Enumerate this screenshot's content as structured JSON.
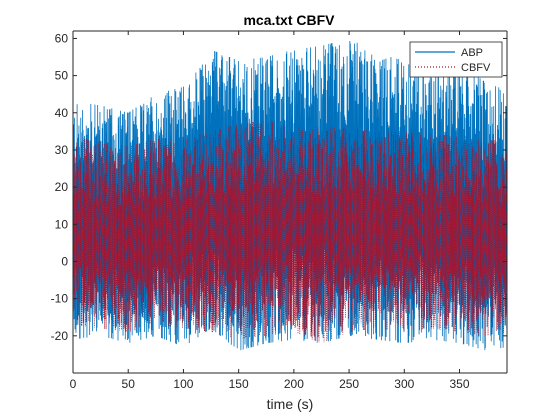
{
  "chart_data": {
    "type": "line",
    "title": "mca.txt CBFV",
    "xlabel": "time (s)",
    "ylabel": "",
    "xlim": [
      0,
      393
    ],
    "ylim": [
      -30,
      62
    ],
    "xticks": [
      0,
      50,
      100,
      150,
      200,
      250,
      300,
      350
    ],
    "yticks": [
      -20,
      -10,
      0,
      10,
      20,
      30,
      40,
      50,
      60
    ],
    "grid": false,
    "legend": {
      "placement": "top-right"
    },
    "series": [
      {
        "name": "ABP",
        "color": "#0072BD",
        "style": "solid",
        "envelope": {
          "x": [
            0,
            25,
            50,
            75,
            100,
            125,
            150,
            175,
            200,
            225,
            250,
            275,
            300,
            325,
            350,
            375,
            393
          ],
          "upper": [
            43,
            42,
            40,
            45,
            47,
            57,
            54,
            55,
            57,
            58,
            60,
            56,
            54,
            52,
            53,
            48,
            46
          ],
          "lower": [
            -21,
            -20,
            -22,
            -20,
            -23,
            -18,
            -24,
            -22,
            -21,
            -22,
            -20,
            -21,
            -22,
            -21,
            -22,
            -24,
            -23
          ]
        }
      },
      {
        "name": "CBFV",
        "color": "#A2142F",
        "style": "dotted",
        "envelope": {
          "x": [
            0,
            25,
            50,
            75,
            100,
            125,
            150,
            175,
            200,
            225,
            250,
            275,
            300,
            325,
            350,
            375,
            393
          ],
          "upper": [
            34,
            32,
            31,
            33,
            33,
            35,
            37,
            38,
            37,
            36,
            36,
            35,
            35,
            34,
            34,
            33,
            32
          ],
          "lower": [
            -17,
            -18,
            -19,
            -17,
            -18,
            -19,
            -21,
            -20,
            -19,
            -22,
            -19,
            -18,
            -19,
            -18,
            -19,
            -20,
            -19
          ]
        }
      }
    ]
  }
}
